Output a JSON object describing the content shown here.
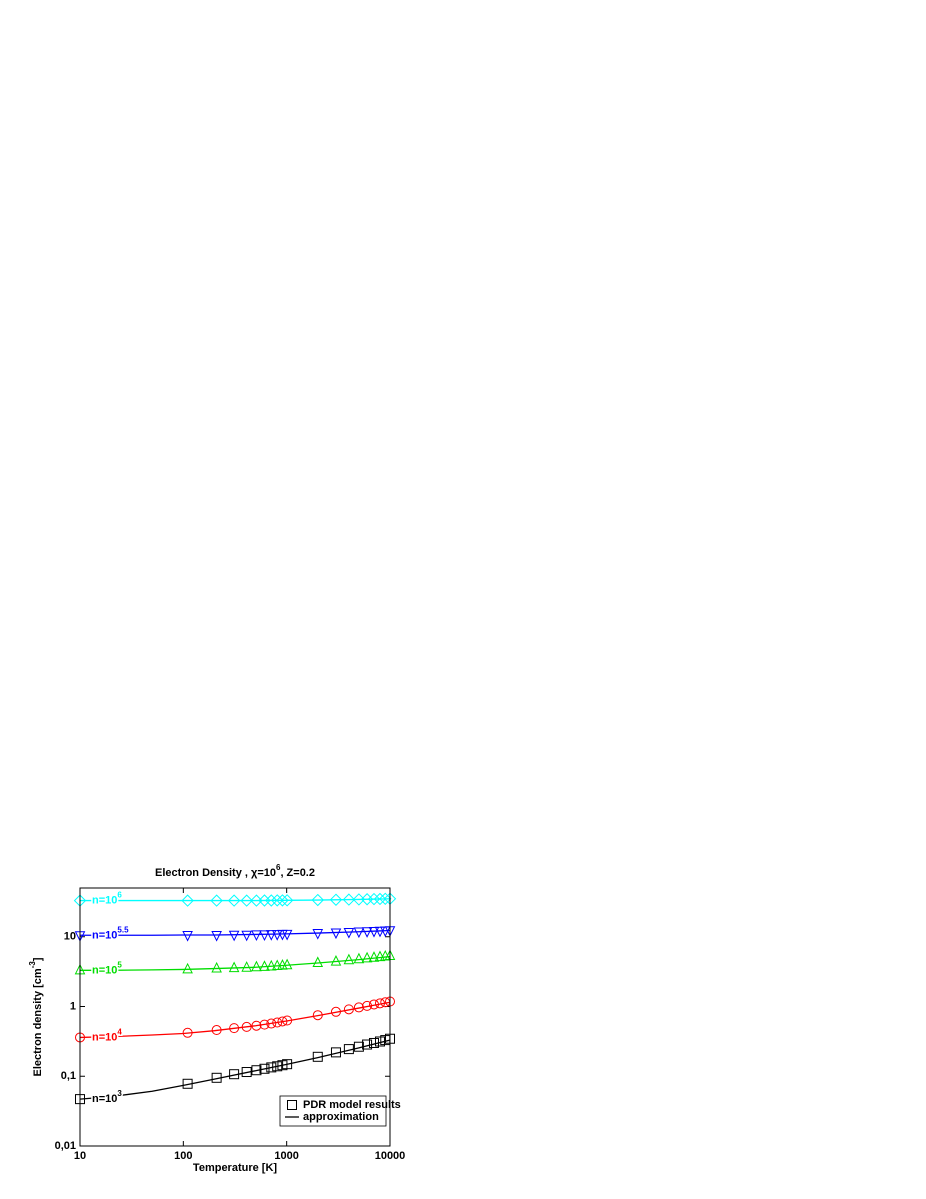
{
  "chart_data": {
    "type": "line",
    "title": {
      "pre": "Electron Density , χ=10",
      "sup": "6",
      "post": ", Z=0.2"
    },
    "x_label": "Temperature [K]",
    "y_label": {
      "pre": "Electron density [cm",
      "sup": "-3",
      "post": "]"
    },
    "log_x": true,
    "log_y": true,
    "xlim": [
      10,
      10000
    ],
    "ylim": [
      0.01,
      50
    ],
    "xticks": [
      10,
      100,
      1000,
      10000
    ],
    "yticks": [
      {
        "value": 0.01,
        "label": "0,01"
      },
      {
        "value": 0.1,
        "label": "0,1"
      },
      1,
      10
    ],
    "legend": [
      "PDR model results",
      "approximation"
    ],
    "legend_position": "lower right",
    "x": [
      10,
      110,
      210,
      310,
      410,
      510,
      610,
      710,
      810,
      910,
      1010,
      2000,
      3000,
      4000,
      5000,
      6000,
      7000,
      8000,
      9000,
      10000
    ],
    "x_fit": [
      10,
      20,
      50,
      100,
      200,
      500,
      1000,
      2000,
      5000,
      10000
    ],
    "series": [
      {
        "label": {
          "pre": "n=10",
          "sup": "3"
        },
        "color": "#000000",
        "marker": "square",
        "values": [
          0.047,
          0.078,
          0.095,
          0.107,
          0.115,
          0.122,
          0.128,
          0.134,
          0.139,
          0.144,
          0.149,
          0.19,
          0.22,
          0.245,
          0.265,
          0.285,
          0.3,
          0.315,
          0.33,
          0.345
        ],
        "fit": [
          0.047,
          0.051,
          0.061,
          0.074,
          0.091,
          0.12,
          0.148,
          0.185,
          0.255,
          0.33
        ]
      },
      {
        "label": {
          "pre": "n=10",
          "sup": "4"
        },
        "color": "#ff0000",
        "marker": "circle",
        "values": [
          0.36,
          0.42,
          0.46,
          0.49,
          0.51,
          0.53,
          0.55,
          0.57,
          0.59,
          0.61,
          0.63,
          0.75,
          0.84,
          0.91,
          0.97,
          1.02,
          1.07,
          1.11,
          1.15,
          1.18
        ],
        "fit": [
          0.36,
          0.37,
          0.39,
          0.41,
          0.45,
          0.53,
          0.62,
          0.74,
          0.95,
          1.15
        ]
      },
      {
        "label": {
          "pre": "n=10",
          "sup": "5"
        },
        "color": "#00dd00",
        "marker": "triangle-up",
        "values": [
          3.3,
          3.4,
          3.5,
          3.55,
          3.6,
          3.65,
          3.7,
          3.75,
          3.8,
          3.85,
          3.9,
          4.2,
          4.4,
          4.6,
          4.75,
          4.9,
          5.0,
          5.1,
          5.2,
          5.3
        ],
        "fit": [
          3.3,
          3.3,
          3.35,
          3.4,
          3.5,
          3.65,
          3.9,
          4.2,
          4.7,
          5.2
        ]
      },
      {
        "label": {
          "pre": "n=10",
          "sup": "5.5"
        },
        "color": "#0000ff",
        "marker": "triangle-down",
        "values": [
          10.5,
          10.6,
          10.6,
          10.7,
          10.7,
          10.8,
          10.8,
          10.9,
          10.9,
          11,
          11,
          11.3,
          11.5,
          11.7,
          11.9,
          12,
          12.1,
          12.2,
          12.3,
          12.4
        ],
        "fit": [
          10.5,
          10.5,
          10.5,
          10.6,
          10.6,
          10.8,
          11,
          11.3,
          11.8,
          12.3
        ]
      },
      {
        "label": {
          "pre": "n=10",
          "sup": "6"
        },
        "color": "#00ffff",
        "marker": "diamond",
        "values": [
          33,
          33,
          33,
          33,
          33,
          33,
          33.1,
          33.1,
          33.2,
          33.2,
          33.3,
          33.6,
          33.9,
          34.1,
          34.3,
          34.5,
          34.7,
          34.8,
          35,
          35.1
        ],
        "fit": [
          33,
          33,
          33,
          33,
          33,
          33,
          33.3,
          33.6,
          34.3,
          35
        ]
      }
    ]
  }
}
